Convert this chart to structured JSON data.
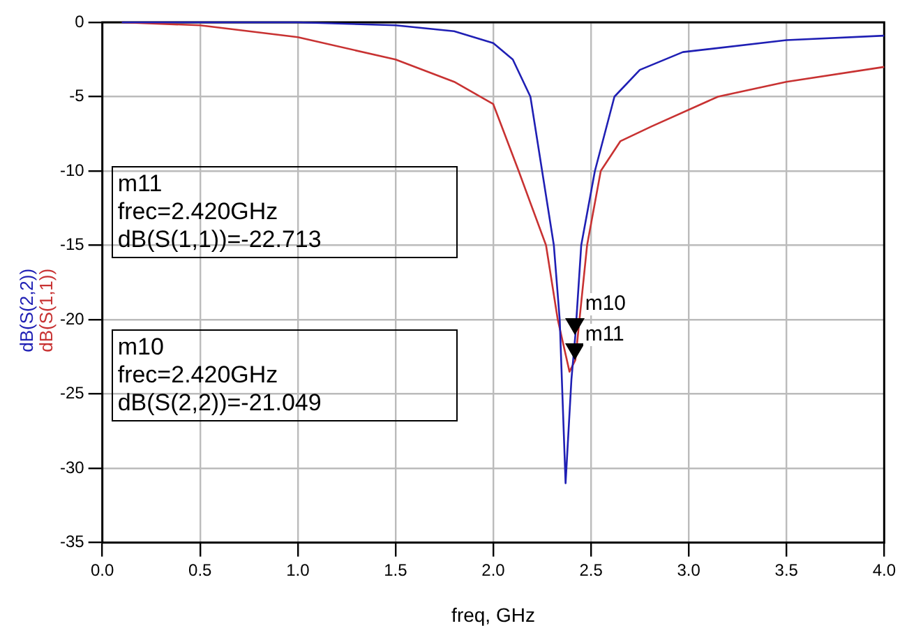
{
  "chart_data": {
    "type": "line",
    "xlabel": "freq, GHz",
    "legend": "left",
    "grid": true,
    "marker": "none",
    "line_style": "solid",
    "xlim": [
      0,
      4
    ],
    "xticks": [
      {
        "value": 0,
        "label": "0.0"
      },
      {
        "value": 0.5,
        "label": "0.5"
      },
      {
        "value": 1,
        "label": "1.0"
      },
      {
        "value": 1.5,
        "label": "1.5"
      },
      {
        "value": 2,
        "label": "2.0"
      },
      {
        "value": 2.5,
        "label": "2.5"
      },
      {
        "value": 3,
        "label": "3.0"
      },
      {
        "value": 3.5,
        "label": "3.5"
      },
      {
        "value": 4,
        "label": "4.0"
      }
    ],
    "ylim": [
      -35,
      0
    ],
    "yticks": [
      -35,
      -30,
      -25,
      -20,
      -15,
      -10,
      -5,
      0
    ],
    "series": [
      {
        "name": "dB(S(2,2))",
        "color": "#1f1fb4",
        "x": [
          0.1,
          0.5,
          1.0,
          1.5,
          1.8,
          2.0,
          2.1,
          2.19,
          2.25,
          2.31,
          2.34,
          2.37,
          2.4,
          2.42,
          2.45,
          2.52,
          2.62,
          2.75,
          2.97,
          3.5,
          4.0
        ],
        "values": [
          0,
          0,
          0,
          -0.2,
          -0.6,
          -1.4,
          -2.5,
          -5,
          -10,
          -15,
          -20,
          -31,
          -24,
          -21.049,
          -15,
          -10,
          -5,
          -3.2,
          -2,
          -1.2,
          -0.9
        ]
      },
      {
        "name": "dB(S(1,1))",
        "color": "#c83232",
        "x": [
          0.1,
          0.5,
          1.0,
          1.5,
          1.8,
          2.0,
          2.13,
          2.27,
          2.33,
          2.39,
          2.42,
          2.48,
          2.55,
          2.65,
          2.81,
          3.15,
          3.5,
          4.0
        ],
        "values": [
          0,
          -0.2,
          -1,
          -2.5,
          -4,
          -5.5,
          -10,
          -15,
          -20,
          -23.5,
          -22.713,
          -15,
          -10,
          -8,
          -7,
          -5,
          -4,
          -3
        ]
      }
    ],
    "annotations": [
      "m11\nfrec=2.420GHz\ndB(S(1,1))=-22.713",
      "m10\nfrec=2.420GHz\ndB(S(2,2))=-21.049",
      {
        "text": "m10",
        "x": 2.42,
        "y": -21.049
      },
      {
        "text": "m11",
        "x": 2.42,
        "y": -22.713
      }
    ]
  }
}
